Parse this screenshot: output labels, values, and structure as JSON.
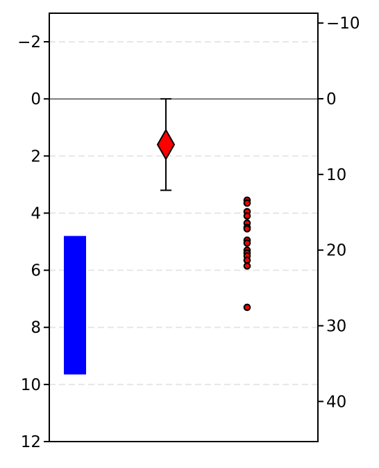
{
  "chart_data": {
    "type": "scatter",
    "title": "",
    "xlabel": "",
    "ylabel": "",
    "left_axis": {
      "ylim": [
        12,
        -3
      ],
      "inverted": true,
      "ticks": [
        -2,
        0,
        2,
        4,
        6,
        8,
        10,
        12
      ],
      "tick_labels": [
        "−2",
        "0",
        "2",
        "4",
        "6",
        "8",
        "10",
        "12"
      ]
    },
    "right_axis": {
      "ylim": [
        45.3,
        -11.3
      ],
      "inverted": true,
      "ticks": [
        -10,
        0,
        10,
        20,
        30,
        40
      ],
      "tick_labels": [
        "−10",
        "0",
        "10",
        "20",
        "30",
        "40"
      ]
    },
    "grid": {
      "axis": "y",
      "style": "dashed",
      "lines_at": [
        -2,
        2,
        4,
        6,
        8,
        10
      ]
    },
    "reference_line": {
      "y": 0
    },
    "bar": {
      "y_top": 4.8,
      "y_bottom": 9.65,
      "color": "#0000ff"
    },
    "mean_marker": {
      "y": 1.6,
      "error_low": 0.0,
      "error_high": 3.2,
      "marker": "diamond",
      "color": "#ff0000"
    },
    "points": {
      "color": "#ff0000",
      "edge_color": "#000000",
      "y": [
        3.55,
        3.65,
        3.95,
        4.1,
        4.35,
        4.5,
        4.55,
        4.95,
        5.05,
        5.3,
        5.4,
        5.5,
        5.65,
        5.85,
        7.3
      ]
    }
  }
}
